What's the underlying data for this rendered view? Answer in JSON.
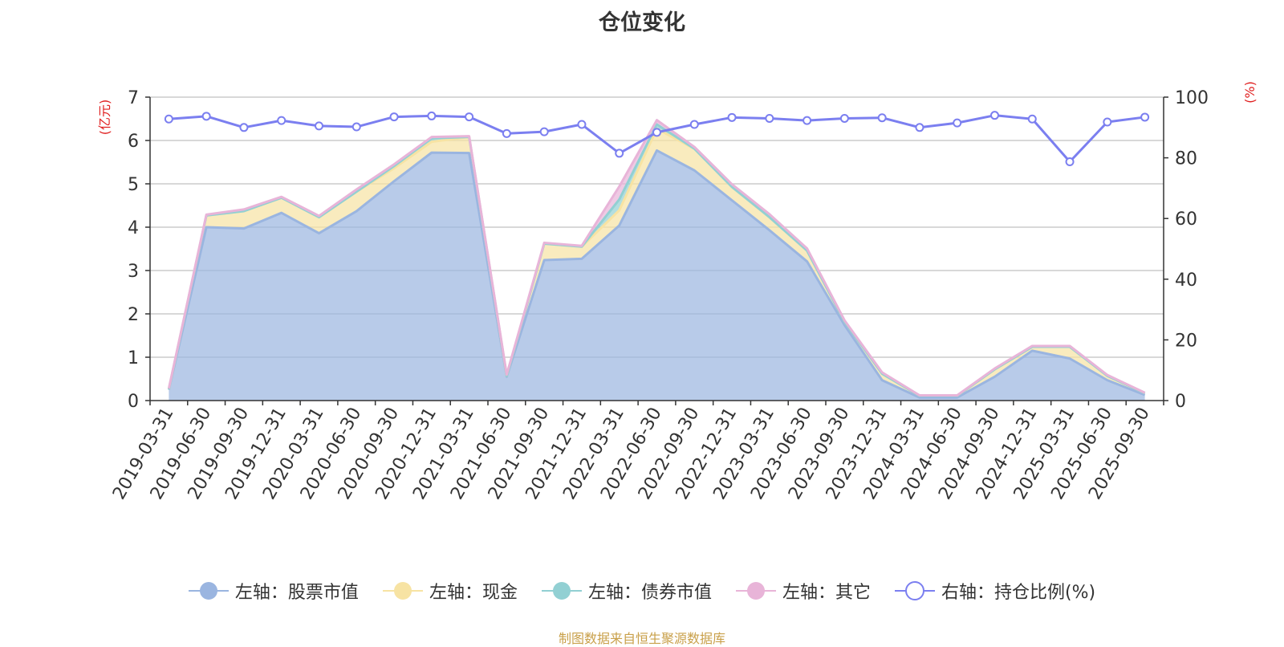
{
  "chart_data": {
    "type": "area",
    "title": "仓位变化",
    "left_unit": "(亿元)",
    "right_unit": "(%)",
    "left_ylim": [
      0,
      7
    ],
    "left_ticks": [
      0,
      1,
      2,
      3,
      4,
      5,
      6,
      7
    ],
    "right_ylim": [
      0,
      100
    ],
    "right_ticks": [
      0,
      20,
      40,
      60,
      80,
      100
    ],
    "grid": true,
    "legend_position": "bottom",
    "x": [
      "2019-03-31",
      "2019-06-30",
      "2019-09-30",
      "2019-12-31",
      "2020-03-31",
      "2020-06-30",
      "2020-09-30",
      "2020-12-31",
      "2021-03-31",
      "2021-06-30",
      "2021-09-30",
      "2021-12-31",
      "2022-03-31",
      "2022-06-30",
      "2022-09-30",
      "2022-12-31",
      "2023-03-31",
      "2023-06-30",
      "2023-09-30",
      "2023-12-31",
      "2024-03-31",
      "2024-06-30",
      "2024-09-30",
      "2024-12-31",
      "2025-03-31",
      "2025-06-30",
      "2025-09-30"
    ],
    "series": [
      {
        "name": "左轴：股票市值",
        "axis": "left",
        "color": "#9ab5e0",
        "values": [
          0.25,
          4.0,
          3.97,
          4.33,
          3.86,
          4.37,
          5.06,
          5.72,
          5.71,
          0.55,
          3.24,
          3.27,
          4.04,
          5.77,
          5.31,
          4.62,
          3.93,
          3.21,
          1.74,
          0.47,
          0.07,
          0.07,
          0.55,
          1.15,
          0.97,
          0.47,
          0.13
        ]
      },
      {
        "name": "左轴：现金",
        "axis": "left",
        "color": "#f7e3a3",
        "values": [
          0.01,
          0.27,
          0.4,
          0.35,
          0.37,
          0.45,
          0.3,
          0.25,
          0.37,
          0.02,
          0.38,
          0.28,
          0.35,
          0.5,
          0.5,
          0.31,
          0.3,
          0.25,
          0.08,
          0.15,
          0.04,
          0.04,
          0.17,
          0.09,
          0.27,
          0.1,
          0.04
        ]
      },
      {
        "name": "左轴：债券市值",
        "axis": "left",
        "color": "#92d0d3",
        "values": [
          0,
          0,
          0,
          0,
          0,
          0,
          0.05,
          0.08,
          0,
          0,
          0,
          0,
          0.25,
          0.1,
          0,
          0,
          0,
          0,
          0,
          0,
          0,
          0,
          0,
          0,
          0,
          0,
          0
        ]
      },
      {
        "name": "左轴：其它",
        "axis": "left",
        "color": "#e8b4d8",
        "values": [
          0.02,
          0.02,
          0.04,
          0.02,
          0.03,
          0.05,
          0.04,
          0.03,
          0.02,
          0.03,
          0.02,
          0.02,
          0.3,
          0.1,
          0.04,
          0.06,
          0.07,
          0.05,
          0.03,
          0.03,
          0.01,
          0.01,
          0.02,
          0.02,
          0.02,
          0.02,
          0.01
        ]
      },
      {
        "name": "右轴：持仓比例(%)",
        "axis": "right",
        "color": "#7b7ff0",
        "values": [
          92.8,
          93.7,
          90.0,
          92.3,
          90.5,
          90.2,
          93.5,
          93.8,
          93.5,
          88.0,
          88.6,
          91.0,
          81.5,
          88.4,
          91.0,
          93.3,
          93.0,
          92.3,
          93.0,
          93.2,
          90.0,
          91.5,
          94.0,
          92.8,
          78.7,
          91.8,
          93.4
        ]
      }
    ]
  },
  "source_note": "制图数据来自恒生聚源数据库"
}
